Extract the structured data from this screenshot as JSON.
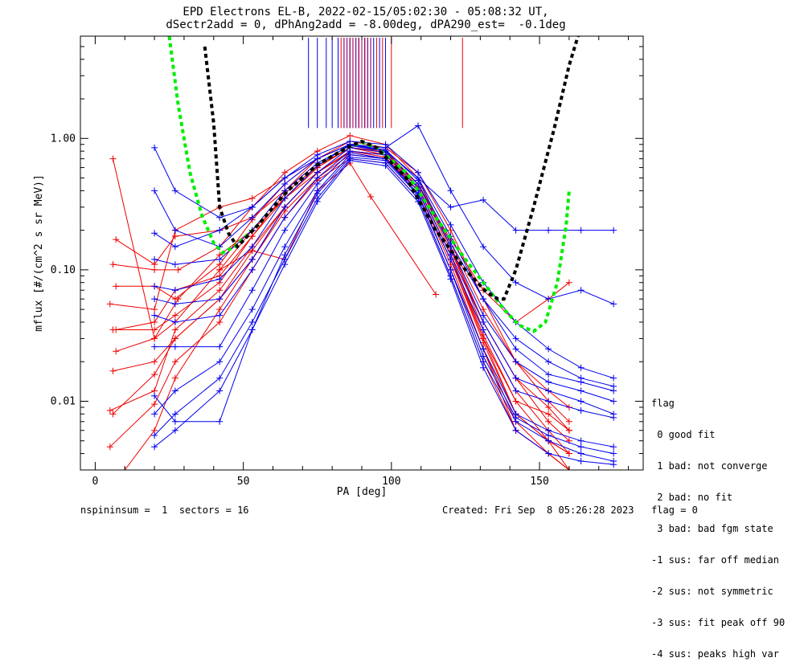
{
  "title_line1": "EPD Electrons EL-B, 2022-02-15/05:02:30 - 05:08:32 UT,",
  "title_line2": "dSectr2add = 0, dPhAng2add = -8.00deg, dPA290_est=  -0.1deg",
  "footer_left": "nspininsum =  1  sectors = 16",
  "footer_right": "Created: Fri Sep  8 05:26:28 2023   flag = 0",
  "flag_legend": {
    "title": "flag",
    "items": [
      " 0 good fit",
      " 1 bad: not converge",
      " 2 bad: no fit",
      " 3 bad: bad fgm state",
      "-1 sus: far off median",
      "-2 sus: not symmetric",
      "-3 sus: fit peak off 90",
      "-4 sus: peaks high var"
    ]
  },
  "colors": {
    "red": "#ee0000",
    "blue": "#0000ee",
    "purple": "#990066",
    "green": "#00ee00",
    "black": "#000000"
  },
  "chart_data": {
    "type": "line",
    "xlabel": "PA [deg]",
    "ylabel": "mflux [#/(cm^2 s sr MeV)]",
    "xlim": [
      -5,
      185
    ],
    "ylim": [
      0.003,
      6.0
    ],
    "yscale": "log",
    "x_ticks": [
      0,
      50,
      100,
      150
    ],
    "x_tick_labels": [
      "0",
      "50",
      "100",
      "150"
    ],
    "y_ticks": [
      0.01,
      0.1,
      1.0
    ],
    "y_tick_labels": [
      "0.01",
      "0.10",
      "1.00"
    ],
    "peak_markers": {
      "blue": [
        72,
        75,
        78,
        80,
        82,
        84,
        85,
        86,
        88,
        89,
        90,
        91,
        92,
        93,
        94,
        96,
        98
      ],
      "red": [
        83,
        86,
        87,
        89,
        91,
        95,
        97,
        100,
        124
      ],
      "purple": [
        84,
        85,
        86,
        87,
        88,
        89,
        90,
        91,
        92,
        93
      ]
    },
    "fit_black": {
      "x": [
        37,
        40,
        42,
        45,
        48,
        55,
        65,
        75,
        85,
        90,
        95,
        105,
        115,
        125,
        132,
        136,
        138,
        142,
        148,
        155,
        160,
        163
      ],
      "y": [
        5.0,
        1.3,
        0.3,
        0.19,
        0.15,
        0.22,
        0.4,
        0.63,
        0.85,
        0.95,
        0.85,
        0.5,
        0.2,
        0.1,
        0.068,
        0.06,
        0.06,
        0.1,
        0.3,
        1.2,
        3.6,
        6.0
      ]
    },
    "fit_green": {
      "x": [
        25,
        28,
        32,
        36,
        40,
        43,
        47,
        55,
        65,
        75,
        85,
        90,
        95,
        105,
        115,
        125,
        132,
        138,
        143,
        148,
        152,
        156,
        159,
        160
      ],
      "y": [
        6.0,
        1.8,
        0.55,
        0.26,
        0.16,
        0.135,
        0.15,
        0.22,
        0.4,
        0.63,
        0.85,
        0.93,
        0.85,
        0.55,
        0.25,
        0.12,
        0.075,
        0.05,
        0.038,
        0.034,
        0.04,
        0.08,
        0.22,
        0.4
      ]
    },
    "series": [
      {
        "color": "red",
        "x": [
          6,
          20,
          28,
          42,
          53,
          64,
          75,
          86,
          98,
          109,
          120,
          131,
          142,
          153,
          160
        ],
        "y": [
          0.7,
          0.03,
          0.06,
          0.13,
          0.2,
          0.35,
          0.55,
          0.8,
          0.75,
          0.45,
          0.17,
          0.07,
          0.04,
          0.06,
          0.08
        ]
      },
      {
        "color": "red",
        "x": [
          5,
          20,
          27,
          42,
          53,
          64,
          75,
          86,
          98,
          109,
          120,
          131,
          142,
          153,
          160
        ],
        "y": [
          0.055,
          0.05,
          0.2,
          0.3,
          0.35,
          0.5,
          0.7,
          0.9,
          0.8,
          0.45,
          0.14,
          0.04,
          0.015,
          0.009,
          0.006
        ]
      },
      {
        "color": "red",
        "x": [
          7,
          20,
          27,
          42,
          53,
          64,
          75,
          86,
          98,
          109,
          120,
          131,
          142,
          153,
          160
        ],
        "y": [
          0.17,
          0.11,
          0.18,
          0.2,
          0.25,
          0.4,
          0.7,
          0.95,
          0.85,
          0.55,
          0.2,
          0.06,
          0.02,
          0.01,
          0.007
        ]
      },
      {
        "color": "red",
        "x": [
          6,
          20,
          28,
          42,
          53,
          64,
          75,
          86,
          98,
          109,
          120,
          131,
          142,
          153,
          160
        ],
        "y": [
          0.11,
          0.1,
          0.1,
          0.15,
          0.3,
          0.55,
          0.8,
          1.05,
          0.9,
          0.5,
          0.15,
          0.035,
          0.012,
          0.006,
          0.004
        ]
      },
      {
        "color": "red",
        "x": [
          7,
          20,
          27,
          42,
          53,
          64,
          75,
          86,
          98,
          109,
          120,
          131,
          142,
          153,
          160
        ],
        "y": [
          0.035,
          0.04,
          0.07,
          0.09,
          0.18,
          0.35,
          0.6,
          0.85,
          0.75,
          0.4,
          0.12,
          0.03,
          0.008,
          0.005,
          0.004
        ]
      },
      {
        "color": "red",
        "x": [
          6,
          20,
          27,
          42,
          53,
          64,
          75,
          86,
          98,
          109,
          120,
          131,
          142,
          153,
          160
        ],
        "y": [
          0.017,
          0.02,
          0.03,
          0.06,
          0.12,
          0.28,
          0.5,
          0.75,
          0.7,
          0.38,
          0.1,
          0.025,
          0.006,
          0.004,
          0.003
        ]
      },
      {
        "color": "red",
        "x": [
          5,
          20,
          27,
          42,
          53,
          64,
          75,
          86,
          98,
          109,
          120,
          131,
          142,
          153,
          160
        ],
        "y": [
          0.0085,
          0.012,
          0.035,
          0.07,
          0.15,
          0.3,
          0.55,
          0.8,
          0.75,
          0.42,
          0.13,
          0.032,
          0.01,
          0.005,
          0.003
        ]
      },
      {
        "color": "red",
        "x": [
          5,
          20,
          27,
          42,
          53,
          64,
          75,
          86,
          98,
          109,
          120,
          131,
          142,
          153,
          160
        ],
        "y": [
          0.0045,
          0.0095,
          0.02,
          0.04,
          0.1,
          0.25,
          0.48,
          0.7,
          0.65,
          0.35,
          0.09,
          0.02,
          0.006,
          0.004,
          0.003
        ]
      },
      {
        "color": "red",
        "x": [
          10,
          20,
          27,
          42,
          53,
          64,
          75,
          86,
          98,
          109,
          120,
          131,
          142,
          153,
          160
        ],
        "y": [
          0.003,
          0.006,
          0.015,
          0.05,
          0.12,
          0.3,
          0.55,
          0.8,
          0.72,
          0.4,
          0.11,
          0.025,
          0.007,
          0.004,
          0.003
        ]
      },
      {
        "color": "red",
        "x": [
          7,
          20,
          27,
          42,
          53,
          64,
          75,
          86,
          98,
          109,
          120,
          131,
          142,
          153,
          160
        ],
        "y": [
          0.075,
          0.075,
          0.06,
          0.11,
          0.24,
          0.45,
          0.7,
          0.9,
          0.8,
          0.45,
          0.16,
          0.05,
          0.02,
          0.012,
          0.009
        ]
      },
      {
        "color": "red",
        "x": [
          6,
          20,
          27,
          42,
          53,
          64,
          75,
          86,
          98,
          109,
          120,
          131,
          142,
          153,
          160
        ],
        "y": [
          0.035,
          0.035,
          0.045,
          0.08,
          0.18,
          0.38,
          0.62,
          0.85,
          0.78,
          0.43,
          0.13,
          0.03,
          0.01,
          0.008,
          0.006
        ]
      },
      {
        "color": "red",
        "x": [
          7,
          20,
          27,
          42,
          53,
          64,
          75,
          86,
          98,
          109,
          120,
          131,
          142,
          153,
          160
        ],
        "y": [
          0.024,
          0.03,
          0.04,
          0.1,
          0.2,
          0.35,
          0.6,
          0.85,
          0.8,
          0.45,
          0.15,
          0.04,
          0.015,
          0.007,
          0.005
        ]
      },
      {
        "color": "red",
        "x": [
          6,
          20,
          27,
          42,
          53,
          64,
          75,
          86,
          98,
          109,
          120,
          131,
          142,
          153,
          160
        ],
        "y": [
          0.008,
          0.016,
          0.03,
          0.06,
          0.14,
          0.3,
          0.55,
          0.78,
          0.7,
          0.4,
          0.12,
          0.028,
          0.008,
          0.005,
          0.004
        ]
      },
      {
        "color": "red",
        "x": [
          42,
          53,
          64,
          75,
          86,
          93,
          115
        ],
        "y": [
          0.1,
          0.14,
          0.12,
          0.4,
          0.65,
          0.36,
          0.065
        ]
      },
      {
        "color": "blue",
        "x": [
          20,
          27,
          42,
          53,
          64,
          75,
          86,
          98,
          109,
          120,
          131,
          142,
          153,
          164,
          175
        ],
        "y": [
          0.85,
          0.4,
          0.25,
          0.3,
          0.5,
          0.7,
          0.9,
          0.8,
          0.5,
          0.3,
          0.34,
          0.2,
          0.2,
          0.2,
          0.2
        ]
      },
      {
        "color": "blue",
        "x": [
          20,
          27,
          42,
          53,
          64,
          75,
          86,
          98,
          109,
          120,
          131,
          142,
          153,
          164,
          175
        ],
        "y": [
          0.4,
          0.2,
          0.15,
          0.25,
          0.45,
          0.7,
          0.9,
          0.85,
          1.25,
          0.4,
          0.15,
          0.08,
          0.06,
          0.07,
          0.055
        ]
      },
      {
        "color": "blue",
        "x": [
          20,
          27,
          42,
          53,
          64,
          75,
          86,
          98,
          109,
          120,
          131,
          142,
          153,
          164,
          175
        ],
        "y": [
          0.12,
          0.11,
          0.12,
          0.2,
          0.4,
          0.65,
          0.88,
          0.8,
          0.5,
          0.18,
          0.06,
          0.025,
          0.016,
          0.014,
          0.012
        ]
      },
      {
        "color": "blue",
        "x": [
          20,
          27,
          42,
          53,
          64,
          75,
          86,
          98,
          109,
          120,
          131,
          142,
          153,
          164,
          175
        ],
        "y": [
          0.06,
          0.055,
          0.06,
          0.12,
          0.3,
          0.55,
          0.85,
          0.78,
          0.45,
          0.15,
          0.045,
          0.02,
          0.014,
          0.012,
          0.01
        ]
      },
      {
        "color": "blue",
        "x": [
          20,
          27,
          42,
          53,
          64,
          75,
          86,
          98,
          109,
          120,
          131,
          142,
          153,
          164,
          175
        ],
        "y": [
          0.045,
          0.04,
          0.045,
          0.1,
          0.25,
          0.5,
          0.8,
          0.75,
          0.42,
          0.13,
          0.04,
          0.015,
          0.012,
          0.01,
          0.008
        ]
      },
      {
        "color": "blue",
        "x": [
          20,
          27,
          42,
          53,
          64,
          75,
          86,
          98,
          109,
          120,
          131,
          142,
          153,
          164,
          175
        ],
        "y": [
          0.026,
          0.026,
          0.026,
          0.07,
          0.2,
          0.45,
          0.78,
          0.7,
          0.4,
          0.12,
          0.035,
          0.012,
          0.01,
          0.0085,
          0.0075
        ]
      },
      {
        "color": "blue",
        "x": [
          20,
          27,
          42,
          53,
          64,
          75,
          86,
          98,
          109,
          120,
          131,
          142,
          153,
          164,
          175
        ],
        "y": [
          0.008,
          0.012,
          0.02,
          0.05,
          0.15,
          0.4,
          0.75,
          0.7,
          0.38,
          0.1,
          0.025,
          0.008,
          0.006,
          0.005,
          0.0045
        ]
      },
      {
        "color": "blue",
        "x": [
          20,
          27,
          42,
          53,
          64,
          75,
          86,
          98,
          109,
          120,
          131,
          142,
          153,
          164,
          175
        ],
        "y": [
          0.0055,
          0.008,
          0.015,
          0.04,
          0.12,
          0.35,
          0.7,
          0.65,
          0.35,
          0.09,
          0.02,
          0.007,
          0.005,
          0.004,
          0.0035
        ]
      },
      {
        "color": "blue",
        "x": [
          20,
          27,
          42,
          53,
          64,
          75,
          86,
          98,
          109,
          120,
          131,
          142,
          153,
          164,
          175
        ],
        "y": [
          0.0045,
          0.006,
          0.012,
          0.035,
          0.11,
          0.33,
          0.68,
          0.62,
          0.33,
          0.085,
          0.018,
          0.006,
          0.004,
          0.0035,
          0.0033
        ]
      },
      {
        "color": "blue",
        "x": [
          20,
          27,
          42,
          53,
          64,
          75,
          86,
          98,
          109,
          120,
          131,
          142,
          153,
          164,
          175
        ],
        "y": [
          0.075,
          0.07,
          0.085,
          0.15,
          0.35,
          0.62,
          0.9,
          0.82,
          0.48,
          0.16,
          0.06,
          0.03,
          0.02,
          0.015,
          0.013
        ]
      },
      {
        "color": "blue",
        "x": [
          20,
          27,
          42,
          53,
          64,
          75,
          86,
          98,
          109,
          120,
          131,
          142,
          153,
          164,
          175
        ],
        "y": [
          0.19,
          0.15,
          0.2,
          0.3,
          0.5,
          0.75,
          0.95,
          0.9,
          0.55,
          0.22,
          0.08,
          0.04,
          0.025,
          0.018,
          0.015
        ]
      },
      {
        "color": "blue",
        "x": [
          20,
          27,
          42,
          53,
          64,
          75,
          86,
          98,
          109,
          120,
          131,
          142,
          153,
          164,
          175
        ],
        "y": [
          0.011,
          0.007,
          0.007,
          0.035,
          0.13,
          0.38,
          0.72,
          0.68,
          0.37,
          0.1,
          0.022,
          0.0075,
          0.0055,
          0.0045,
          0.004
        ]
      }
    ]
  }
}
